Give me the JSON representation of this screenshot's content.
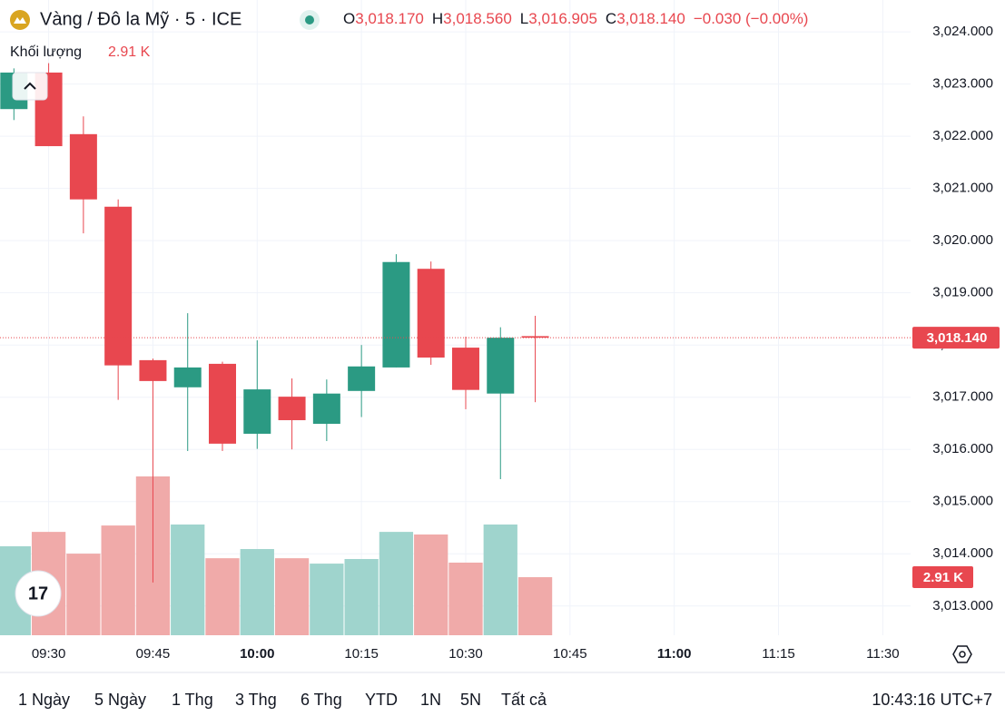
{
  "chart_data": {
    "type": "candlestick",
    "title": "Vàng / Đô la Mỹ · 5 · ICE",
    "ohlc_legend": [
      {
        "key": "O",
        "text": "3,018.170"
      },
      {
        "key": "H",
        "text": "3,018.560"
      },
      {
        "key": "L",
        "text": "3,016.905"
      },
      {
        "key": "C",
        "text": "3,018.140"
      }
    ],
    "change": "−0.030 (−0.00%)",
    "volume_title": "Khối lượng",
    "volume_text": "2.91 K",
    "x": [
      "09:25",
      "09:30",
      "09:35",
      "09:40",
      "09:45",
      "09:50",
      "09:55",
      "10:00",
      "10:05",
      "10:10",
      "10:15",
      "10:20",
      "10:25",
      "10:30",
      "10:35",
      "10:40"
    ],
    "open": [
      3022.52,
      3023.22,
      3022.04,
      3020.65,
      3017.71,
      3017.19,
      3017.64,
      3016.3,
      3017.01,
      3016.49,
      3017.12,
      3017.57,
      3019.46,
      3017.95,
      3017.07,
      3018.17
    ],
    "high": [
      3023.3,
      3023.4,
      3022.38,
      3020.79,
      3017.74,
      3018.61,
      3017.68,
      3018.09,
      3017.36,
      3017.34,
      3018.0,
      3019.74,
      3019.6,
      3018.16,
      3018.34,
      3018.56
    ],
    "low": [
      3022.31,
      3021.81,
      3020.14,
      3016.95,
      3013.45,
      3015.97,
      3015.97,
      3016.01,
      3016.0,
      3016.16,
      3016.62,
      3017.57,
      3017.62,
      3016.77,
      3015.43,
      3016.905
    ],
    "close": [
      3023.22,
      3021.81,
      3020.79,
      3017.61,
      3017.31,
      3017.57,
      3016.11,
      3017.15,
      3016.56,
      3017.07,
      3017.59,
      3019.59,
      3017.76,
      3017.14,
      3018.14,
      3018.14
    ],
    "volume": [
      4.46,
      5.18,
      4.09,
      5.5,
      7.96,
      5.55,
      3.86,
      4.32,
      3.86,
      3.59,
      3.82,
      5.18,
      5.05,
      3.64,
      5.55,
      2.91
    ],
    "up_color": "#2b9a83",
    "down_color": "#e8474f",
    "volume_up_color": "#9fd4cd",
    "volume_down_color": "#f0aaa9",
    "xlim": [
      "09:23",
      "11:34"
    ],
    "xticks": [
      "09:30",
      "09:45",
      "10:00",
      "10:15",
      "10:30",
      "10:45",
      "11:00",
      "11:15",
      "11:30"
    ],
    "ylim": [
      3012.44,
      3024.61
    ],
    "yticks": [
      {
        "value": 3013,
        "label": "3,013.000"
      },
      {
        "value": 3014,
        "label": "3,014.000"
      },
      {
        "value": 3015,
        "label": "3,015.000"
      },
      {
        "value": 3016,
        "label": "3,016.000"
      },
      {
        "value": 3017,
        "label": "3,017.000"
      },
      {
        "value": 3018,
        "label": "3,018.000"
      },
      {
        "value": 3019,
        "label": "3,019.000"
      },
      {
        "value": 3020,
        "label": "3,020.000"
      },
      {
        "value": 3021,
        "label": "3,021.000"
      },
      {
        "value": 3022,
        "label": "3,022.000"
      },
      {
        "value": 3023,
        "label": "3,023.000"
      },
      {
        "value": 3024,
        "label": "3,024.000"
      }
    ],
    "grid": true,
    "range_buttons": [
      "1 Ngày",
      "5 Ngày",
      "1 Thg",
      "3 Thg",
      "6 Thg",
      "YTD",
      "1N",
      "5N",
      "Tất cả"
    ],
    "clock": "10:43:16 UTC+7"
  }
}
